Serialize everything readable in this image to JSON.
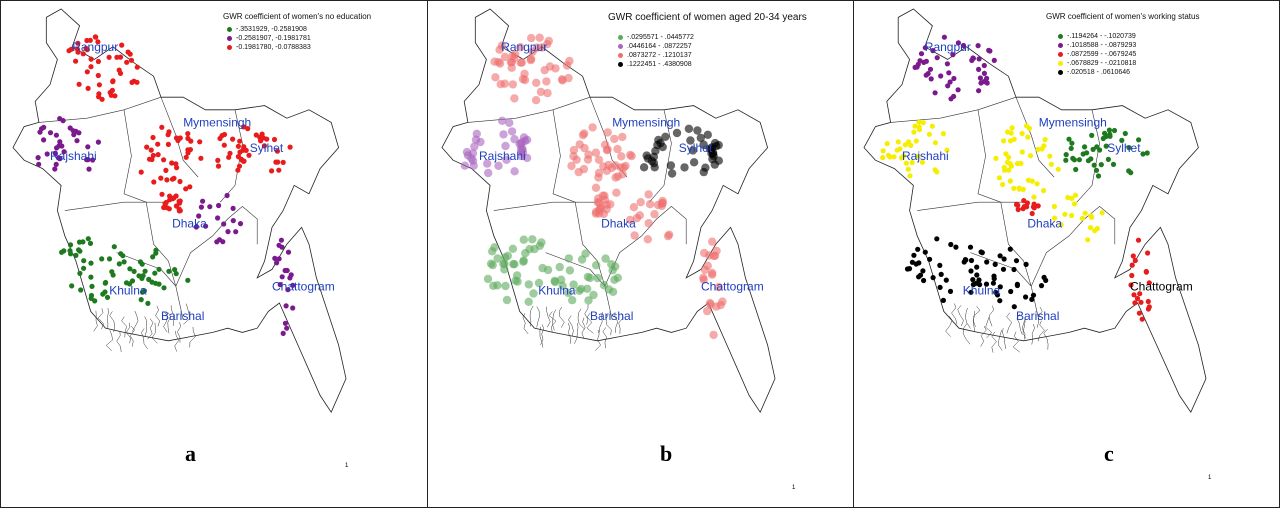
{
  "panels": [
    {
      "id": "a",
      "title": "GWR coefficient of women's no education",
      "letter": "a",
      "north_mark": "1",
      "legend": [
        {
          "label": "-.3531929, -0.2581908",
          "color": "#1e7a1e"
        },
        {
          "label": "-0.2581907, -0.1981781",
          "color": "#7a1a8c"
        },
        {
          "label": "-0.1981780, -0.0788383",
          "color": "#e81c1c"
        }
      ],
      "regions": [
        {
          "name": "Rangpur",
          "color": "#1f3fbf"
        },
        {
          "name": "Rajshahi",
          "color": "#1f3fbf"
        },
        {
          "name": "Mymensingh",
          "color": "#1f3fbf"
        },
        {
          "name": "Sylhet",
          "color": "#1f3fbf"
        },
        {
          "name": "Dhaka",
          "color": "#1f3fbf"
        },
        {
          "name": "Khulna",
          "color": "#1f3fbf"
        },
        {
          "name": "Barishal",
          "color": "#1f3fbf"
        },
        {
          "name": "Chattogram",
          "color": "#1f3fbf"
        }
      ],
      "zone_classes": {
        "north": 2,
        "west": 1,
        "center": 2,
        "east": 2,
        "south": 0,
        "southeast": 1,
        "coast": 1,
        "capital": 2
      }
    },
    {
      "id": "b",
      "title": "GWR coefficient of women aged 20-34 years",
      "letter": "b",
      "north_mark": "1",
      "legend": [
        {
          "label": "-.0295571 - .0445772",
          "color": "#5daa5d"
        },
        {
          "label": ".0446164 - .0872257",
          "color": "#a866c0"
        },
        {
          "label": ".0873272 - .1210137",
          "color": "#ef6f6f"
        },
        {
          "label": ".1222451 - .4380908",
          "color": "#000000"
        }
      ],
      "regions": [
        {
          "name": "Rangpur",
          "color": "#1f3fbf"
        },
        {
          "name": "Rajshahi",
          "color": "#1f3fbf"
        },
        {
          "name": "Mymensingh",
          "color": "#1f3fbf"
        },
        {
          "name": "Sylhet",
          "color": "#1f3fbf"
        },
        {
          "name": "Dhaka",
          "color": "#1f3fbf"
        },
        {
          "name": "Khulna",
          "color": "#1f3fbf"
        },
        {
          "name": "Barishal",
          "color": "#1f3fbf"
        },
        {
          "name": "Chattogram",
          "color": "#1f3fbf"
        }
      ],
      "zone_classes": {
        "north": 2,
        "west": 1,
        "center": 2,
        "east": 3,
        "south": 0,
        "southeast": 2,
        "coast": 2,
        "capital": 2
      }
    },
    {
      "id": "c",
      "title": "GWR coefficient of women's working status",
      "letter": "c",
      "north_mark": "1",
      "legend": [
        {
          "label": "-.1194264 - -.1020739",
          "color": "#1e7a1e"
        },
        {
          "label": "-.1018588 - -.0879293",
          "color": "#7a1a8c"
        },
        {
          "label": "-.0872599 - -.0679245",
          "color": "#e81c1c"
        },
        {
          "label": "-.0678829 - -.0210818",
          "color": "#f5ee00"
        },
        {
          "label": "-.020518 - .0610646",
          "color": "#000000"
        }
      ],
      "regions": [
        {
          "name": "Rangpur",
          "color": "#1f3fbf"
        },
        {
          "name": "Rajshahi",
          "color": "#1f3fbf"
        },
        {
          "name": "Mymensingh",
          "color": "#1f3fbf"
        },
        {
          "name": "Sylhet",
          "color": "#1f3fbf"
        },
        {
          "name": "Dhaka",
          "color": "#1f3fbf"
        },
        {
          "name": "Khulna",
          "color": "#1f3fbf"
        },
        {
          "name": "Barishal",
          "color": "#1f3fbf"
        },
        {
          "name": "Chattogram",
          "color": "#000000"
        }
      ],
      "zone_classes": {
        "north": 1,
        "west": 3,
        "center": 3,
        "east": 0,
        "south": 4,
        "southeast": 3,
        "coast": 2,
        "capital": 2
      }
    }
  ]
}
